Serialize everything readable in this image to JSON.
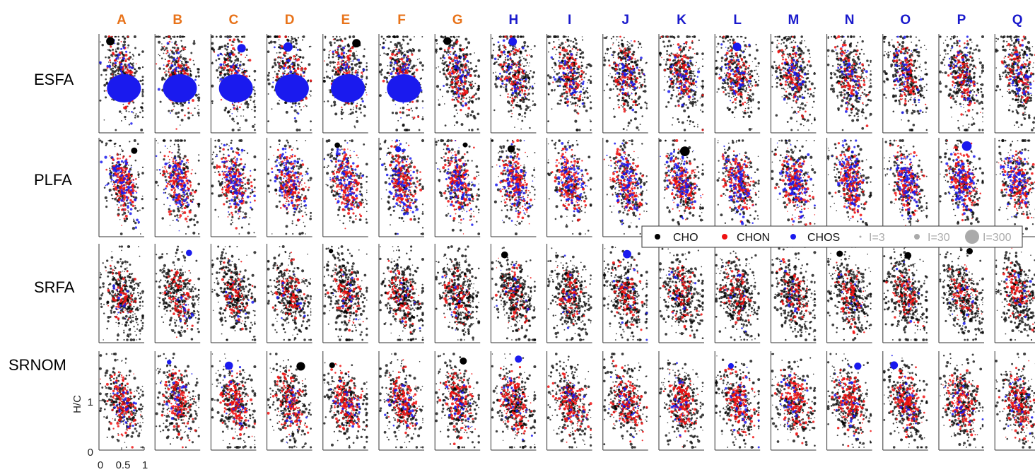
{
  "chart_data": {
    "type": "scatter",
    "kind": "van Krevelen diagram grid",
    "columns": [
      {
        "label": "A",
        "color": "#e8731a"
      },
      {
        "label": "B",
        "color": "#e8731a"
      },
      {
        "label": "C",
        "color": "#e8731a"
      },
      {
        "label": "D",
        "color": "#e8731a"
      },
      {
        "label": "E",
        "color": "#e8731a"
      },
      {
        "label": "F",
        "color": "#e8731a"
      },
      {
        "label": "G",
        "color": "#e8731a"
      },
      {
        "label": "H",
        "color": "#1a1acc"
      },
      {
        "label": "I",
        "color": "#1a1acc"
      },
      {
        "label": "J",
        "color": "#1a1acc"
      },
      {
        "label": "K",
        "color": "#1a1acc"
      },
      {
        "label": "L",
        "color": "#1a1acc"
      },
      {
        "label": "M",
        "color": "#1a1acc"
      },
      {
        "label": "N",
        "color": "#1a1acc"
      },
      {
        "label": "O",
        "color": "#1a1acc"
      },
      {
        "label": "P",
        "color": "#1a1acc"
      },
      {
        "label": "Q",
        "color": "#1a1acc"
      }
    ],
    "rows": [
      "ESFA",
      "PLFA",
      "SRFA",
      "SRNOM"
    ],
    "xlim": [
      0,
      1
    ],
    "ylim": [
      0,
      2
    ],
    "xticks": [
      "0",
      "0.5",
      "1"
    ],
    "yticks": [
      "0",
      "1"
    ],
    "ylabel": "H/C",
    "series": [
      {
        "name": "CHO",
        "color": "#000000"
      },
      {
        "name": "CHON",
        "color": "#ee1111"
      },
      {
        "name": "CHOS",
        "color": "#1a1aee"
      }
    ],
    "size_legend": [
      "I=3",
      "I=30",
      "I=300"
    ],
    "legend_placement": "right, between rows 2 and 3",
    "cluster_centers": {
      "ESFA": {
        "x": 0.5,
        "y": 1.25
      },
      "PLFA": {
        "x": 0.5,
        "y": 1.3
      },
      "SRFA": {
        "x": 0.5,
        "y": 1.05
      },
      "SRNOM": {
        "x": 0.5,
        "y": 1.0
      }
    }
  }
}
